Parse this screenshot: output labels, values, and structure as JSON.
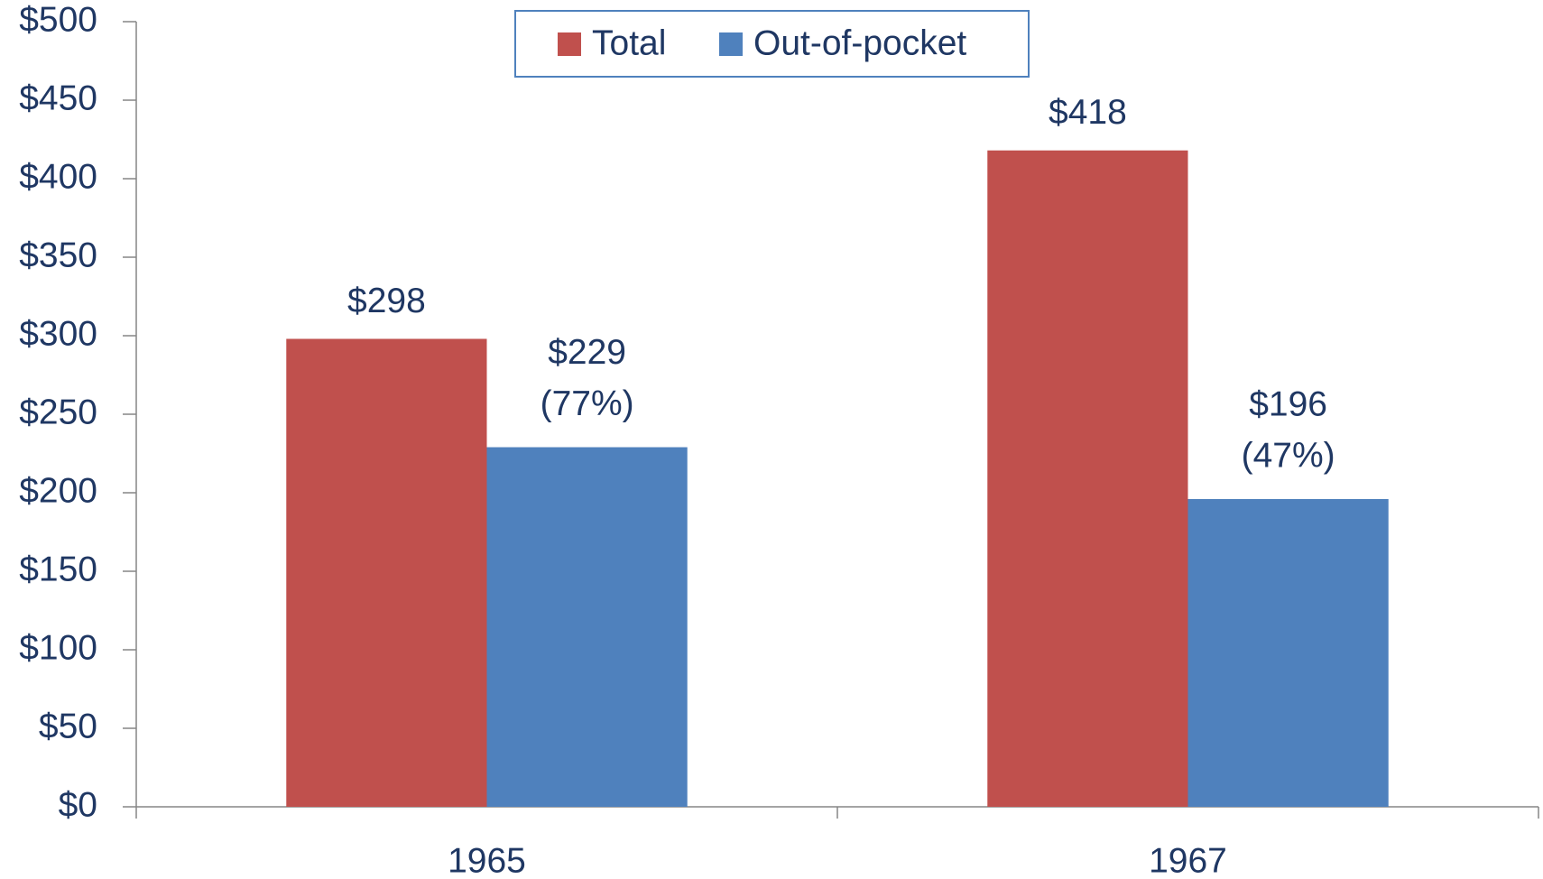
{
  "chart_data": {
    "type": "bar",
    "categories": [
      "1965",
      "1967"
    ],
    "series": [
      {
        "name": "Total",
        "color": "#c0504d",
        "values": [
          298,
          418
        ],
        "value_labels": [
          "$298",
          "$418"
        ]
      },
      {
        "name": "Out-of-pocket",
        "color": "#4f81bd",
        "values": [
          229,
          196
        ],
        "value_labels": [
          "$229",
          "$196"
        ],
        "percent_labels": [
          "(77%)",
          "(47%)"
        ]
      }
    ],
    "ylim": [
      0,
      500
    ],
    "yticks": [
      {
        "value": 0,
        "label": "$0"
      },
      {
        "value": 50,
        "label": "$50"
      },
      {
        "value": 100,
        "label": "$100"
      },
      {
        "value": 150,
        "label": "$150"
      },
      {
        "value": 200,
        "label": "$200"
      },
      {
        "value": 250,
        "label": "$250"
      },
      {
        "value": 300,
        "label": "$300"
      },
      {
        "value": 350,
        "label": "$350"
      },
      {
        "value": 400,
        "label": "$400"
      },
      {
        "value": 450,
        "label": "$450"
      },
      {
        "value": 500,
        "label": "$500"
      }
    ],
    "grid": false,
    "legend": "top"
  }
}
